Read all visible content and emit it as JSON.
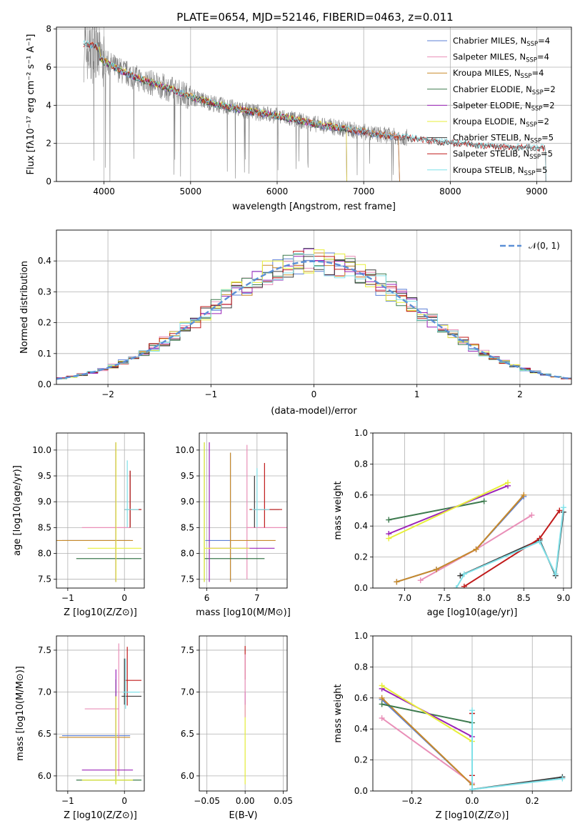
{
  "title": "PLATE=0654, MJD=52146, FIBERID=0463, z=0.011",
  "colors": {
    "Chabrier MILES": "#5b7fd6",
    "Salpeter MILES": "#e98fb8",
    "Kroupa MILES": "#c88a2a",
    "Chabrier ELODIE": "#3d7a4e",
    "Salpeter ELODIE": "#9b22b8",
    "Kroupa ELODIE": "#e7ef3a",
    "Chabrier STELIB": "#3a3a3a",
    "Salpeter STELIB": "#c01a1a",
    "Kroupa STELIB": "#7fe0e8",
    "data": "#808080",
    "orange": "#f07a2a",
    "normal": "#5b8fd6"
  },
  "chart_data": [
    {
      "id": "spectrum",
      "type": "line",
      "title": "PLATE=0654, MJD=52146, FIBERID=0463, z=0.011",
      "xlabel": "wavelength [Angstrom, rest frame]",
      "ylabel": "Flux [fλ10⁻¹⁷ erg cm⁻² s⁻¹ A⁻¹]",
      "xlim": [
        3450,
        9400
      ],
      "ylim": [
        0,
        8.1
      ],
      "xticks": [
        4000,
        5000,
        6000,
        7000,
        8000,
        9000
      ],
      "yticks": [
        0,
        2,
        4,
        6,
        8
      ],
      "legend_position": "top-right",
      "legend": [
        "Chabrier MILES, N_SSP=4",
        "Salpeter MILES, N_SSP=4",
        "Kroupa MILES, N_SSP=4",
        "Chabrier ELODIE, N_SSP=2",
        "Salpeter ELODIE, N_SSP=2",
        "Kroupa ELODIE, N_SSP=2",
        "Chabrier STELIB, N_SSP=5",
        "Salpeter STELIB, N_SSP=5",
        "Kroupa STELIB, N_SSP=5"
      ],
      "data_trend": {
        "x": [
          3800,
          3900,
          4000,
          4200,
          4400,
          4600,
          4800,
          5000,
          5300,
          5600,
          6000,
          6400,
          6800,
          7200,
          7600,
          8000,
          8500,
          9100
        ],
        "y": [
          6.8,
          6.7,
          6.3,
          5.8,
          5.4,
          5.1,
          4.8,
          4.45,
          4.05,
          3.75,
          3.45,
          3.05,
          2.75,
          2.45,
          2.25,
          2.05,
          1.85,
          1.75
        ]
      },
      "model_ranges": {
        "MILES": [
          3800,
          7410
        ],
        "ELODIE": [
          3920,
          6800
        ],
        "STELIB": [
          3760,
          9100
        ]
      }
    },
    {
      "id": "residuals",
      "type": "bar",
      "xlabel": "(data-model)/error",
      "ylabel": "Normed distribution",
      "xlim": [
        -2.5,
        2.5
      ],
      "ylim": [
        0,
        0.5
      ],
      "xticks": [
        -2,
        -1,
        0,
        1,
        2
      ],
      "yticks": [
        0.0,
        0.1,
        0.2,
        0.3,
        0.4
      ],
      "legend": [
        "𝒩(0, 1)"
      ],
      "legend_position": "top-right",
      "bin_width": 0.1
    },
    {
      "id": "age_vs_Z",
      "type": "scatter",
      "xlabel": "Z [log10(Z/Z⊙)]",
      "ylabel": "age  [log10(age/yr)]",
      "xlim": [
        -1.2,
        0.35
      ],
      "ylim": [
        7.33,
        10.33
      ],
      "xticks": [
        -1,
        0
      ],
      "yticks": [
        7.5,
        8.0,
        8.5,
        9.0,
        9.5,
        10.0
      ],
      "points": [
        {
          "model": "Chabrier MILES",
          "x": -0.15,
          "xerr": [
            0.95,
            0.25
          ],
          "y": 8.25,
          "yerr": [
            0.8,
            1.9
          ]
        },
        {
          "model": "Salpeter MILES",
          "x": -0.15,
          "xerr": [
            0.6,
            0.25
          ],
          "y": 8.5,
          "yerr": [
            1.0,
            1.6
          ]
        },
        {
          "model": "Kroupa MILES",
          "x": -0.15,
          "xerr": [
            1.1,
            0.3
          ],
          "y": 8.25,
          "yerr": [
            0.8,
            1.85
          ]
        },
        {
          "model": "Chabrier ELODIE",
          "x": -0.15,
          "xerr": [
            0.7,
            0.45
          ],
          "y": 7.9,
          "yerr": [
            0.45,
            2.25
          ]
        },
        {
          "model": "Salpeter ELODIE",
          "x": -0.15,
          "xerr": [
            0.0,
            0.0
          ],
          "y": 9.0,
          "yerr": [
            1.55,
            1.15
          ]
        },
        {
          "model": "Kroupa ELODIE",
          "x": -0.15,
          "xerr": [
            0.5,
            0.45
          ],
          "y": 8.1,
          "yerr": [
            0.65,
            2.05
          ]
        },
        {
          "model": "Chabrier STELIB",
          "x": 0.1,
          "xerr": [
            0.1,
            0.2
          ],
          "y": 8.85,
          "yerr": [
            0.35,
            0.75
          ]
        },
        {
          "model": "Salpeter STELIB",
          "x": 0.1,
          "xerr": [
            0.1,
            0.2
          ],
          "y": 8.85,
          "yerr": [
            0.35,
            0.75
          ]
        },
        {
          "model": "Kroupa STELIB",
          "x": 0.05,
          "xerr": [
            0.05,
            0.2
          ],
          "y": 8.85,
          "yerr": [
            0.35,
            0.95
          ]
        }
      ]
    },
    {
      "id": "age_vs_mass",
      "type": "scatter",
      "xlabel": "mass [log10(M/M⊙)]",
      "xlim": [
        5.85,
        7.6
      ],
      "ylim": [
        7.33,
        10.33
      ],
      "xticks": [
        6,
        7
      ],
      "yticks": [
        7.5,
        8.0,
        8.5,
        9.0,
        9.5,
        10.0
      ],
      "points": [
        {
          "model": "Chabrier MILES",
          "x": 6.47,
          "xerr": [
            0.5,
            0.0
          ],
          "y": 8.25,
          "yerr": [
            0.8,
            1.7
          ]
        },
        {
          "model": "Salpeter MILES",
          "x": 6.8,
          "xerr": [
            0.0,
            0.9
          ],
          "y": 8.5,
          "yerr": [
            1.0,
            1.6
          ]
        },
        {
          "model": "Kroupa MILES",
          "x": 6.47,
          "xerr": [
            0.0,
            0.9
          ],
          "y": 8.25,
          "yerr": [
            0.8,
            1.7
          ]
        },
        {
          "model": "Chabrier ELODIE",
          "x": 5.95,
          "xerr": [
            0.0,
            1.2
          ],
          "y": 7.9,
          "yerr": [
            0.45,
            2.25
          ]
        },
        {
          "model": "Salpeter ELODIE",
          "x": 6.05,
          "xerr": [
            0.0,
            1.3
          ],
          "y": 8.1,
          "yerr": [
            0.65,
            2.05
          ]
        },
        {
          "model": "Kroupa ELODIE",
          "x": 5.95,
          "xerr": [
            0.0,
            0.9
          ],
          "y": 8.1,
          "yerr": [
            0.65,
            2.05
          ]
        },
        {
          "model": "Chabrier STELIB",
          "x": 6.95,
          "xerr": [
            0.0,
            0.5
          ],
          "y": 8.85,
          "yerr": [
            0.35,
            0.65
          ]
        },
        {
          "model": "Salpeter STELIB",
          "x": 7.15,
          "xerr": [
            0.3,
            0.35
          ],
          "y": 8.85,
          "yerr": [
            0.35,
            0.9
          ]
        },
        {
          "model": "Kroupa STELIB",
          "x": 7.0,
          "xerr": [
            0.1,
            0.25
          ],
          "y": 8.85,
          "yerr": [
            0.35,
            0.8
          ]
        }
      ]
    },
    {
      "id": "weight_vs_age",
      "type": "line",
      "xlabel": "age  [log10(age/yr)]",
      "ylabel": "mass weight",
      "xlim": [
        6.6,
        9.1
      ],
      "ylim": [
        0,
        1.0
      ],
      "xticks": [
        7.0,
        7.5,
        8.0,
        8.5,
        9.0
      ],
      "yticks": [
        0.0,
        0.2,
        0.4,
        0.6,
        0.8,
        1.0
      ],
      "series": [
        {
          "name": "Chabrier MILES",
          "x": [
            6.9,
            7.4,
            7.9,
            8.5
          ],
          "y": [
            0.04,
            0.12,
            0.25,
            0.59
          ]
        },
        {
          "name": "Salpeter MILES",
          "x": [
            7.2,
            7.9,
            8.6
          ],
          "y": [
            0.05,
            0.25,
            0.47
          ]
        },
        {
          "name": "Kroupa MILES",
          "x": [
            6.9,
            7.4,
            7.9,
            8.5
          ],
          "y": [
            0.04,
            0.12,
            0.25,
            0.6
          ]
        },
        {
          "name": "Chabrier ELODIE",
          "x": [
            6.8,
            8.0
          ],
          "y": [
            0.44,
            0.56
          ]
        },
        {
          "name": "Salpeter ELODIE",
          "x": [
            6.8,
            8.3
          ],
          "y": [
            0.35,
            0.66
          ]
        },
        {
          "name": "Kroupa ELODIE",
          "x": [
            6.8,
            8.3
          ],
          "y": [
            0.32,
            0.68
          ]
        },
        {
          "name": "Chabrier STELIB",
          "x": [
            7.7,
            8.7,
            8.9,
            9.0
          ],
          "y": [
            0.08,
            0.31,
            0.08,
            0.49
          ]
        },
        {
          "name": "Salpeter STELIB",
          "x": [
            7.75,
            8.7,
            8.95
          ],
          "y": [
            0.01,
            0.32,
            0.5
          ]
        },
        {
          "name": "Kroupa STELIB",
          "x": [
            7.65,
            7.75,
            8.7,
            8.9,
            9.0
          ],
          "y": [
            0.0,
            0.09,
            0.3,
            0.09,
            0.52
          ]
        }
      ]
    },
    {
      "id": "mass_vs_Z",
      "type": "scatter",
      "xlabel": "Z [log10(Z/Z⊙)]",
      "ylabel": "mass [log10(M/M⊙)]",
      "xlim": [
        -1.2,
        0.35
      ],
      "ylim": [
        5.82,
        7.67
      ],
      "xticks": [
        -1,
        0
      ],
      "yticks": [
        6.0,
        6.5,
        7.0,
        7.5
      ],
      "points": [
        {
          "model": "Chabrier MILES",
          "x": -0.15,
          "xerr": [
            0.95,
            0.25
          ],
          "y": 6.48,
          "yerr": [
            0.55,
            0.5
          ]
        },
        {
          "model": "Salpeter MILES",
          "x": -0.1,
          "xerr": [
            0.6,
            0.0
          ],
          "y": 6.8,
          "yerr": [
            0.8,
            0.78
          ]
        },
        {
          "model": "Kroupa MILES",
          "x": -0.15,
          "xerr": [
            1.0,
            0.25
          ],
          "y": 6.46,
          "yerr": [
            0.55,
            0.5
          ]
        },
        {
          "model": "Chabrier ELODIE",
          "x": -0.15,
          "xerr": [
            0.7,
            0.45
          ],
          "y": 5.95,
          "yerr": [
            0.05,
            1.2
          ]
        },
        {
          "model": "Salpeter ELODIE",
          "x": -0.15,
          "xerr": [
            0.6,
            0.3
          ],
          "y": 6.07,
          "yerr": [
            0.07,
            1.2
          ]
        },
        {
          "model": "Kroupa ELODIE",
          "x": -0.15,
          "xerr": [
            0.6,
            0.3
          ],
          "y": 5.95,
          "yerr": [
            0.05,
            1.0
          ]
        },
        {
          "model": "Chabrier STELIB",
          "x": 0.0,
          "xerr": [
            0.05,
            0.3
          ],
          "y": 6.95,
          "yerr": [
            0.1,
            0.45
          ]
        },
        {
          "model": "Salpeter STELIB",
          "x": 0.05,
          "xerr": [
            0.05,
            0.25
          ],
          "y": 7.14,
          "yerr": [
            0.3,
            0.4
          ]
        },
        {
          "model": "Kroupa STELIB",
          "x": 0.02,
          "xerr": [
            0.05,
            0.25
          ],
          "y": 7.0,
          "yerr": [
            0.2,
            0.4
          ]
        }
      ]
    },
    {
      "id": "mass_vs_ebv",
      "type": "scatter",
      "xlabel": "E(B-V)",
      "xlim": [
        -0.06,
        0.055
      ],
      "ylim": [
        5.82,
        7.67
      ],
      "xticks": [
        -0.05,
        0.0,
        0.05
      ],
      "xticklabels": [
        "−0.05",
        "0.00",
        "0.05"
      ],
      "yticks": [
        6.0,
        6.5,
        7.0,
        7.5
      ],
      "points": [
        {
          "model": "Kroupa ELODIE",
          "x": 0.0,
          "y": 6.4,
          "yerr": [
            0.5,
            0.5
          ]
        },
        {
          "model": "Salpeter ELODIE",
          "x": 0.0,
          "y": 6.9,
          "yerr": [
            0.05,
            0.1
          ]
        },
        {
          "model": "Salpeter STELIB",
          "x": 0.0,
          "y": 7.3,
          "yerr": [
            0.15,
            0.25
          ]
        },
        {
          "model": "Salpeter MILES",
          "x": 0.0,
          "y": 7.1,
          "yerr": [
            0.4,
            0.35
          ]
        }
      ]
    },
    {
      "id": "weight_vs_Z",
      "type": "line",
      "xlabel": "Z [log10(Z/Z⊙)]",
      "ylabel": "mass weight",
      "xlim": [
        -0.33,
        0.33
      ],
      "ylim": [
        0,
        1.0
      ],
      "xticks": [
        -0.2,
        0.0,
        0.2
      ],
      "xticklabels": [
        "−0.2",
        "0.0",
        "0.2"
      ],
      "yticks": [
        0.0,
        0.2,
        0.4,
        0.6,
        0.8,
        1.0
      ],
      "series": [
        {
          "name": "Chabrier MILES",
          "x": [
            -0.3,
            0.0
          ],
          "y": [
            0.59,
            0.04
          ]
        },
        {
          "name": "Salpeter MILES",
          "x": [
            -0.3,
            0.0
          ],
          "y": [
            0.47,
            0.05
          ]
        },
        {
          "name": "Kroupa MILES",
          "x": [
            -0.3,
            0.0
          ],
          "y": [
            0.6,
            0.04
          ]
        },
        {
          "name": "Chabrier ELODIE",
          "x": [
            -0.3,
            0.0
          ],
          "y": [
            0.56,
            0.44
          ]
        },
        {
          "name": "Salpeter ELODIE",
          "x": [
            -0.3,
            0.0
          ],
          "y": [
            0.66,
            0.35
          ]
        },
        {
          "name": "Kroupa ELODIE",
          "x": [
            -0.3,
            0.0
          ],
          "y": [
            0.68,
            0.32
          ]
        },
        {
          "name": "Chabrier STELIB",
          "x": [
            0.0,
            0.3
          ],
          "y": [
            0.01,
            0.09
          ]
        },
        {
          "name": "Salpeter STELIB",
          "x": [
            0.0,
            0.0
          ],
          "y": [
            0.5,
            0.1
          ]
        },
        {
          "name": "Kroupa STELIB",
          "x": [
            0.0,
            0.0,
            0.3
          ],
          "y": [
            0.52,
            0.01,
            0.08
          ]
        }
      ]
    }
  ]
}
